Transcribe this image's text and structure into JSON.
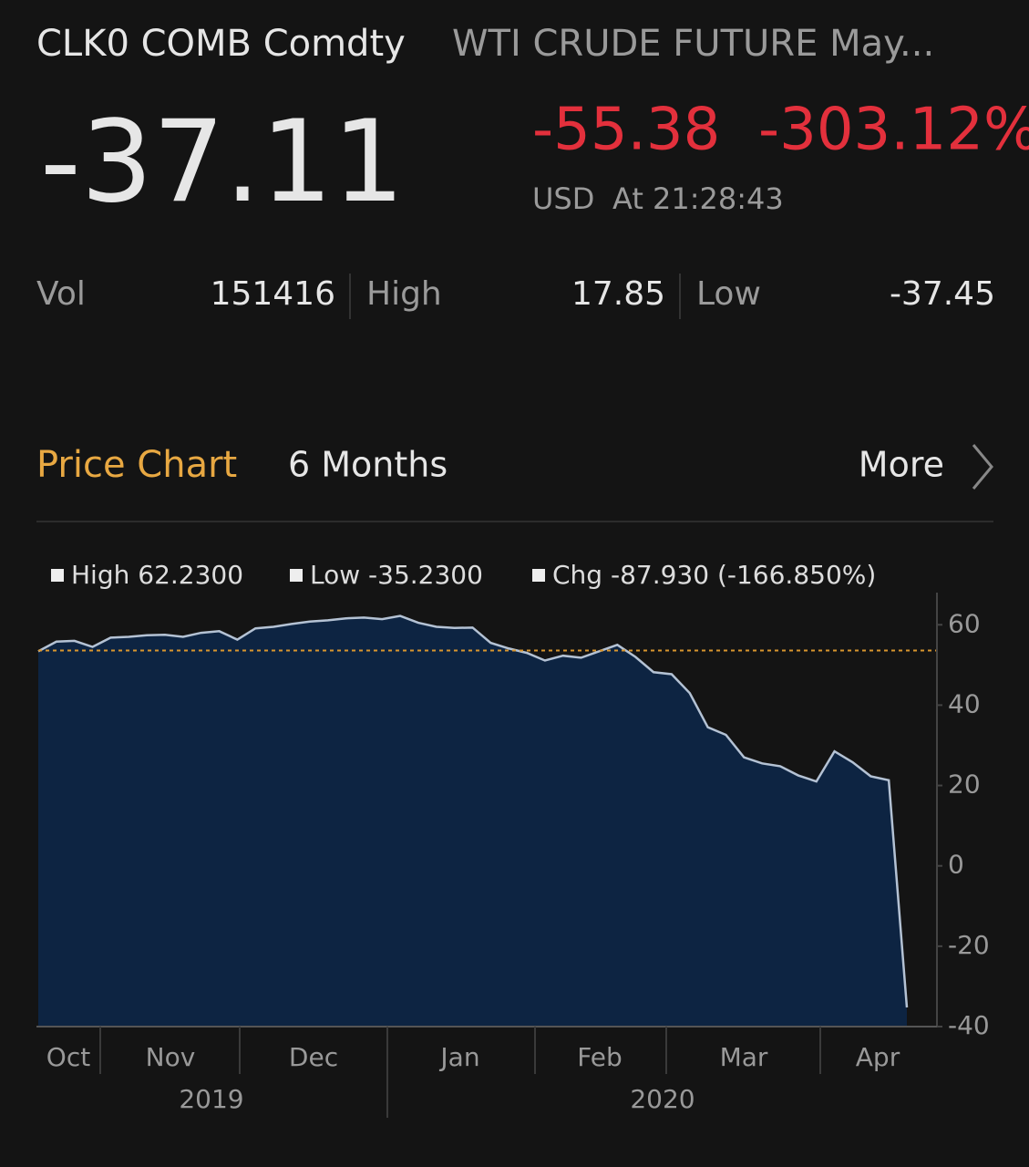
{
  "header": {
    "ticker": "CLK0 COMB Comdty",
    "name": "WTI CRUDE FUTURE  May...",
    "price": "-37.11",
    "change": "-55.38",
    "change_pct": "-303.12%",
    "currency": "USD",
    "time": "At 21:28:43"
  },
  "stats": [
    {
      "label": "Vol",
      "value": "151416"
    },
    {
      "label": "High",
      "value": "17.85"
    },
    {
      "label": "Low",
      "value": "-37.45"
    }
  ],
  "section": {
    "title": "Price Chart",
    "period": "6 Months",
    "more": "More"
  },
  "chart_data": {
    "type": "area",
    "legend": [
      "High 62.2300",
      "Low -35.2300",
      "Chg -87.930 (-166.850%)"
    ],
    "months": [
      "Oct",
      "Nov",
      "Dec",
      "Jan",
      "Feb",
      "Mar",
      "Apr"
    ],
    "years": [
      "2019",
      "2020"
    ],
    "series": [
      {
        "color": "#b4c2d4",
        "fill": "#0d2442",
        "values": [
          53.4,
          55.8,
          56.0,
          54.5,
          56.8,
          57.0,
          57.4,
          57.5,
          57.0,
          58.0,
          58.4,
          56.3,
          59.1,
          59.5,
          60.2,
          60.8,
          61.1,
          61.6,
          61.8,
          61.4,
          62.2,
          60.5,
          59.5,
          59.2,
          59.3,
          55.5,
          54.1,
          53.0,
          51.1,
          52.3,
          51.8,
          53.4,
          55.0,
          52.0,
          48.2,
          47.7,
          43.0,
          34.5,
          32.6,
          27.0,
          25.5,
          24.8,
          22.5,
          21.0,
          28.5,
          25.8,
          22.3,
          21.3,
          -35.23
        ]
      }
    ],
    "ref_line": {
      "value": 53.6,
      "color": "#d9962e"
    },
    "ylim": [
      -40,
      68
    ],
    "yticks": [
      60,
      40,
      20,
      0,
      -20,
      -40
    ]
  }
}
